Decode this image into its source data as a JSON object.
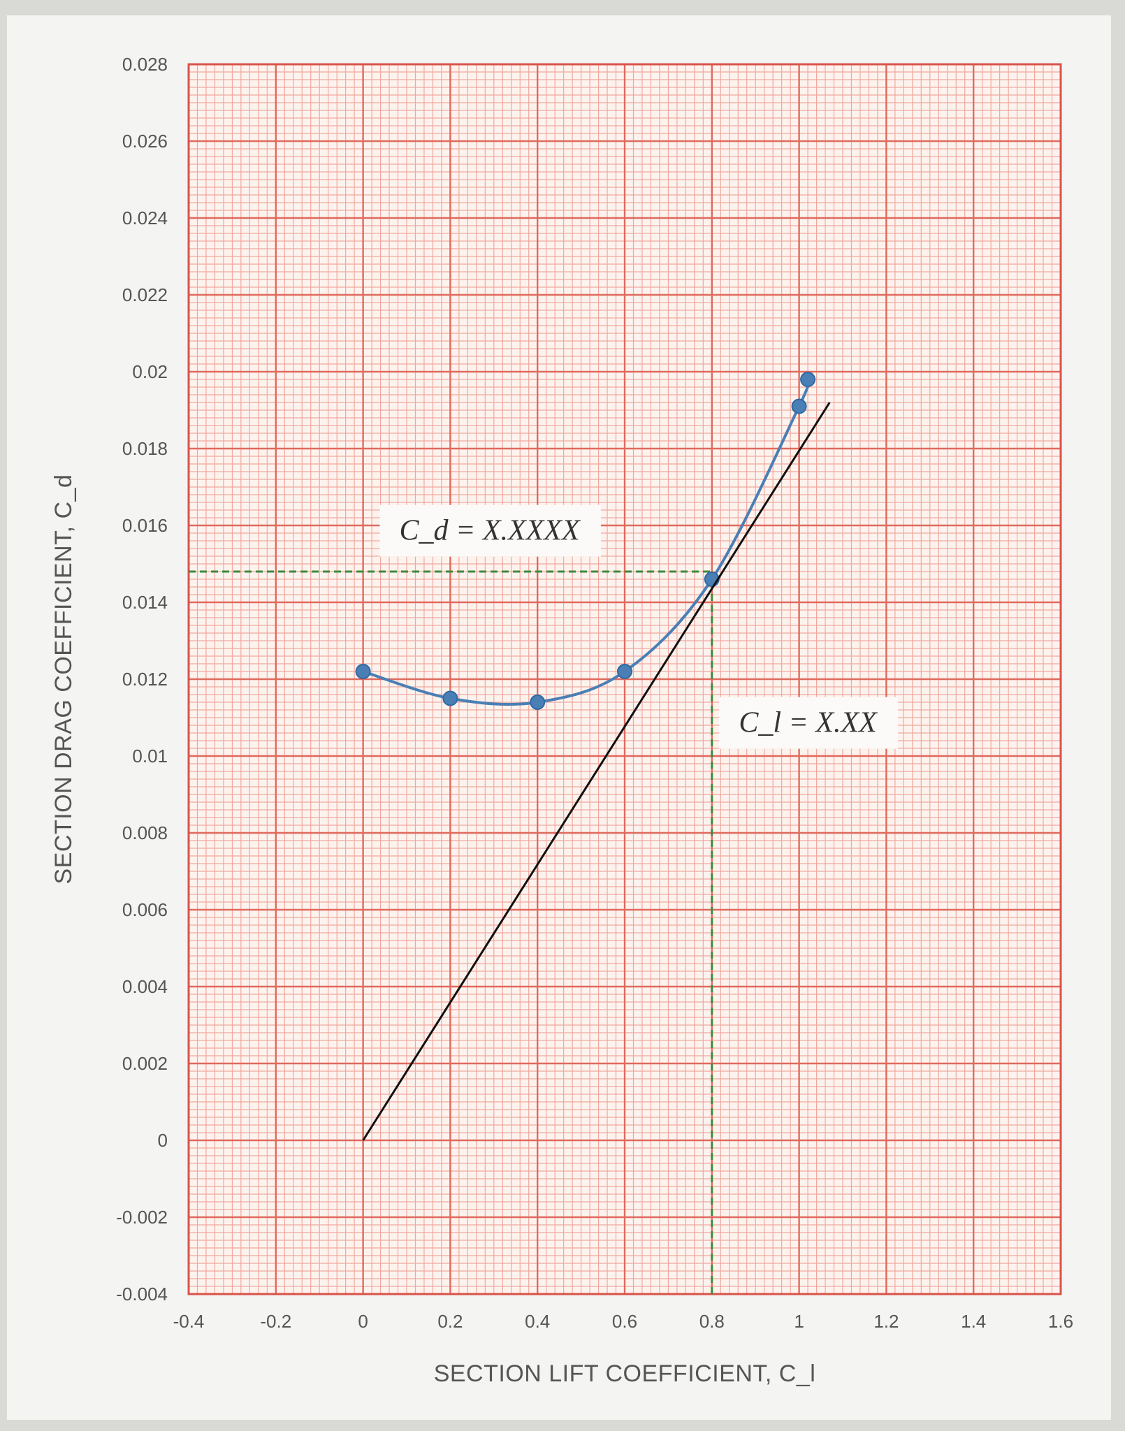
{
  "chart_data": {
    "type": "line",
    "xlabel": "SECTION LIFT COEFFICIENT, C_l",
    "ylabel": "SECTION DRAG COEFFICIENT, C_d",
    "xlim": [
      -0.4,
      1.6
    ],
    "ylim": [
      -0.004,
      0.028
    ],
    "x_ticks": [
      "-0.4",
      "-0.2",
      "0",
      "0.2",
      "0.4",
      "0.6",
      "0.8",
      "1",
      "1.2",
      "1.4",
      "1.6"
    ],
    "y_ticks": [
      "0.028",
      "0.026",
      "0.024",
      "0.022",
      "0.02",
      "0.018",
      "0.016",
      "0.014",
      "0.012",
      "0.01",
      "0.008",
      "0.006",
      "0.004",
      "0.002",
      "0",
      "-0.002",
      "-0.004"
    ],
    "grid": true,
    "series": [
      {
        "color": "#4a7fb5",
        "marker": "circle",
        "x": [
          0,
          0.2,
          0.4,
          0.6,
          0.8,
          1.0,
          1.02
        ],
        "y": [
          0.0122,
          0.0115,
          0.0114,
          0.0122,
          0.0146,
          0.0191,
          0.0198
        ]
      },
      {
        "color": "#111111",
        "marker": "none",
        "x": [
          0,
          1.07
        ],
        "y": [
          0,
          0.0192
        ]
      }
    ],
    "reference_lines": {
      "color": "#3e8a3e",
      "x": 0.8,
      "y": 0.0148
    },
    "annotations": [
      {
        "text": "C_d = X.XXXX"
      },
      {
        "text": "C_l = X.XX"
      }
    ],
    "colors": {
      "grid_major": "#e06a5e",
      "grid_minor": "#f0a89e",
      "background": "#fdf3ee"
    }
  }
}
